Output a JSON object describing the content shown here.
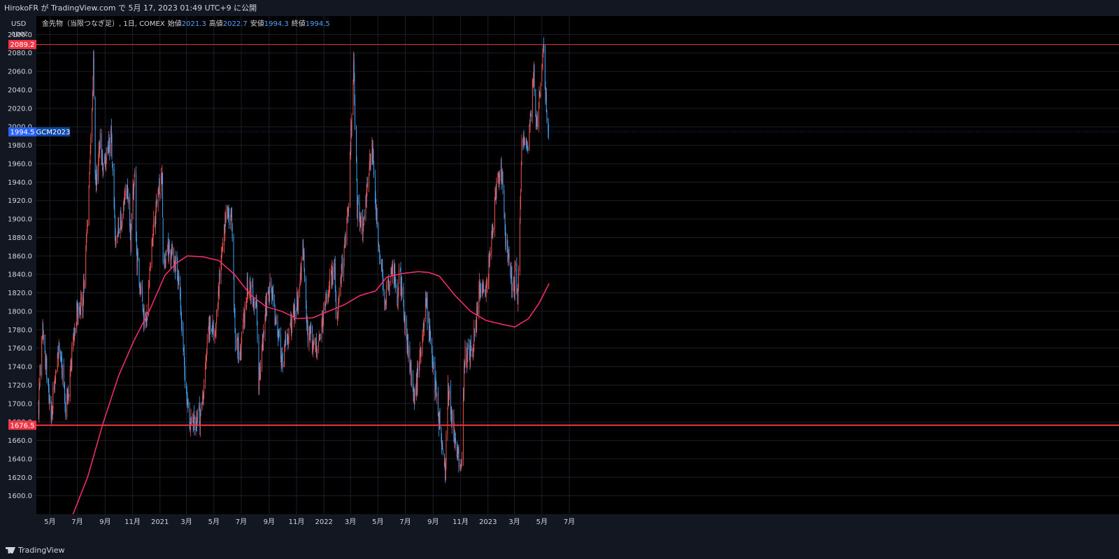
{
  "header": {
    "publish_text": "HirokoFR が TradingView.com で 5月 17, 2023 01:49 UTC+9 に公開"
  },
  "footer": {
    "brand": "TradingView"
  },
  "scale": {
    "currency": "USD",
    "unit": "apoz"
  },
  "legend": {
    "symbol": "金先物（当限つなぎ足）, 1日, COMEX",
    "open_label": "始値",
    "open_value": "2021.3",
    "high_label": "高値",
    "high_value": "2022.7",
    "low_label": "安値",
    "low_value": "1994.3",
    "close_label": "終値",
    "close_value": "1994.5"
  },
  "colors": {
    "background": "#000000",
    "up": "#ef5350",
    "down": "#42a5f5",
    "ma": "#ff2d6f",
    "level": "#f23645",
    "price_tag": "#2962ff"
  },
  "chart_data": {
    "type": "candlestick",
    "title": "金先物（当限つなぎ足）, 1日, COMEX",
    "ylabel": "USD",
    "ylim": [
      1580,
      2120
    ],
    "y_ticks": [
      1600,
      1620,
      1640,
      1660,
      1680,
      1700,
      1720,
      1740,
      1760,
      1780,
      1800,
      1820,
      1840,
      1860,
      1880,
      1900,
      1920,
      1940,
      1960,
      1980,
      2000,
      2020,
      2040,
      2060,
      2080,
      2100
    ],
    "x_ticks": [
      {
        "label": "5月",
        "date": "2020-05-01"
      },
      {
        "label": "7月",
        "date": "2020-07-01"
      },
      {
        "label": "9月",
        "date": "2020-09-01"
      },
      {
        "label": "11月",
        "date": "2020-11-01"
      },
      {
        "label": "2021",
        "date": "2021-01-01"
      },
      {
        "label": "3月",
        "date": "2021-03-01"
      },
      {
        "label": "5月",
        "date": "2021-05-01"
      },
      {
        "label": "7月",
        "date": "2021-07-01"
      },
      {
        "label": "9月",
        "date": "2021-09-01"
      },
      {
        "label": "11月",
        "date": "2021-11-01"
      },
      {
        "label": "2022",
        "date": "2022-01-01"
      },
      {
        "label": "3月",
        "date": "2022-03-01"
      },
      {
        "label": "5月",
        "date": "2022-05-01"
      },
      {
        "label": "7月",
        "date": "2022-07-01"
      },
      {
        "label": "9月",
        "date": "2022-09-01"
      },
      {
        "label": "11月",
        "date": "2022-11-01"
      },
      {
        "label": "2023",
        "date": "2023-01-01"
      },
      {
        "label": "3月",
        "date": "2023-03-01"
      },
      {
        "label": "5月",
        "date": "2023-05-01"
      },
      {
        "label": "7月",
        "date": "2023-07-01"
      }
    ],
    "price_path": [
      [
        "2020-04-06",
        1700
      ],
      [
        "2020-04-14",
        1780
      ],
      [
        "2020-04-24",
        1735
      ],
      [
        "2020-05-05",
        1690
      ],
      [
        "2020-05-18",
        1760
      ],
      [
        "2020-05-29",
        1735
      ],
      [
        "2020-06-05",
        1690
      ],
      [
        "2020-06-19",
        1750
      ],
      [
        "2020-06-30",
        1800
      ],
      [
        "2020-07-14",
        1812
      ],
      [
        "2020-07-24",
        1900
      ],
      [
        "2020-08-06",
        2069
      ],
      [
        "2020-08-11",
        1930
      ],
      [
        "2020-08-20",
        1990
      ],
      [
        "2020-08-28",
        1955
      ],
      [
        "2020-09-15",
        1990
      ],
      [
        "2020-09-24",
        1870
      ],
      [
        "2020-10-07",
        1900
      ],
      [
        "2020-10-21",
        1930
      ],
      [
        "2020-10-28",
        1880
      ],
      [
        "2020-11-06",
        1960
      ],
      [
        "2020-11-10",
        1860
      ],
      [
        "2020-11-30",
        1780
      ],
      [
        "2020-12-17",
        1890
      ],
      [
        "2021-01-06",
        1955
      ],
      [
        "2021-01-08",
        1850
      ],
      [
        "2021-01-20",
        1870
      ],
      [
        "2021-02-10",
        1840
      ],
      [
        "2021-02-26",
        1730
      ],
      [
        "2021-03-08",
        1680
      ],
      [
        "2021-03-31",
        1685
      ],
      [
        "2021-04-21",
        1780
      ],
      [
        "2021-05-05",
        1780
      ],
      [
        "2021-05-20",
        1880
      ],
      [
        "2021-06-01",
        1910
      ],
      [
        "2021-06-10",
        1895
      ],
      [
        "2021-06-18",
        1765
      ],
      [
        "2021-06-29",
        1755
      ],
      [
        "2021-07-15",
        1830
      ],
      [
        "2021-08-04",
        1810
      ],
      [
        "2021-08-09",
        1725
      ],
      [
        "2021-08-24",
        1800
      ],
      [
        "2021-09-03",
        1830
      ],
      [
        "2021-09-30",
        1745
      ],
      [
        "2021-10-22",
        1790
      ],
      [
        "2021-11-05",
        1815
      ],
      [
        "2021-11-16",
        1870
      ],
      [
        "2021-11-24",
        1780
      ],
      [
        "2021-12-15",
        1760
      ],
      [
        "2022-01-05",
        1810
      ],
      [
        "2022-01-25",
        1850
      ],
      [
        "2022-01-28",
        1790
      ],
      [
        "2022-02-14",
        1860
      ],
      [
        "2022-02-24",
        1910
      ],
      [
        "2022-03-08",
        2070
      ],
      [
        "2022-03-16",
        1910
      ],
      [
        "2022-03-29",
        1890
      ],
      [
        "2022-04-18",
        1985
      ],
      [
        "2022-04-29",
        1900
      ],
      [
        "2022-05-16",
        1810
      ],
      [
        "2022-06-03",
        1850
      ],
      [
        "2022-06-13",
        1810
      ],
      [
        "2022-06-17",
        1845
      ],
      [
        "2022-07-05",
        1770
      ],
      [
        "2022-07-21",
        1700
      ],
      [
        "2022-08-16",
        1815
      ],
      [
        "2022-08-26",
        1760
      ],
      [
        "2022-09-15",
        1680
      ],
      [
        "2022-09-28",
        1625
      ],
      [
        "2022-10-04",
        1720
      ],
      [
        "2022-10-21",
        1650
      ],
      [
        "2022-11-03",
        1635
      ],
      [
        "2022-11-10",
        1750
      ],
      [
        "2022-11-28",
        1760
      ],
      [
        "2022-12-13",
        1825
      ],
      [
        "2022-12-30",
        1830
      ],
      [
        "2023-01-20",
        1935
      ],
      [
        "2023-02-02",
        1950
      ],
      [
        "2023-02-10",
        1870
      ],
      [
        "2023-02-28",
        1820
      ],
      [
        "2023-03-03",
        1855
      ],
      [
        "2023-03-08",
        1820
      ],
      [
        "2023-03-17",
        1975
      ],
      [
        "2023-03-31",
        1985
      ],
      [
        "2023-04-13",
        2055
      ],
      [
        "2023-04-19",
        2000
      ],
      [
        "2023-05-04",
        2085
      ],
      [
        "2023-05-09",
        2035
      ],
      [
        "2023-05-16",
        1994.5
      ]
    ],
    "moving_average": [
      [
        "2020-05-15",
        1560
      ],
      [
        "2020-06-20",
        1578
      ],
      [
        "2020-07-24",
        1620
      ],
      [
        "2020-08-27",
        1678
      ],
      [
        "2020-10-01",
        1730
      ],
      [
        "2020-11-04",
        1768
      ],
      [
        "2020-12-09",
        1801
      ],
      [
        "2021-01-12",
        1839
      ],
      [
        "2021-02-06",
        1852
      ],
      [
        "2021-03-03",
        1860
      ],
      [
        "2021-04-07",
        1859
      ],
      [
        "2021-05-12",
        1855
      ],
      [
        "2021-06-16",
        1840
      ],
      [
        "2021-07-21",
        1818
      ],
      [
        "2021-08-25",
        1805
      ],
      [
        "2021-09-29",
        1800
      ],
      [
        "2021-11-02",
        1792
      ],
      [
        "2021-12-07",
        1793
      ],
      [
        "2022-01-11",
        1800
      ],
      [
        "2022-02-15",
        1807
      ],
      [
        "2022-03-22",
        1817
      ],
      [
        "2022-04-26",
        1822
      ],
      [
        "2022-05-21",
        1837
      ],
      [
        "2022-06-25",
        1841
      ],
      [
        "2022-07-30",
        1843
      ],
      [
        "2022-08-23",
        1842
      ],
      [
        "2022-09-15",
        1838
      ],
      [
        "2022-10-20",
        1817
      ],
      [
        "2022-11-23",
        1800
      ],
      [
        "2022-12-28",
        1790
      ],
      [
        "2023-01-31",
        1786
      ],
      [
        "2023-03-02",
        1783
      ],
      [
        "2023-04-01",
        1792
      ],
      [
        "2023-04-24",
        1808
      ],
      [
        "2023-05-17",
        1830
      ]
    ],
    "horizontal_levels": [
      {
        "price": 2089.2,
        "label": "2089.2",
        "weight": "thin"
      },
      {
        "price": 1676.5,
        "label": "1676.5",
        "weight": "thick"
      }
    ],
    "last_price": {
      "price": 1994.5,
      "label": "1994.5",
      "symbol": "GCM2023"
    }
  }
}
